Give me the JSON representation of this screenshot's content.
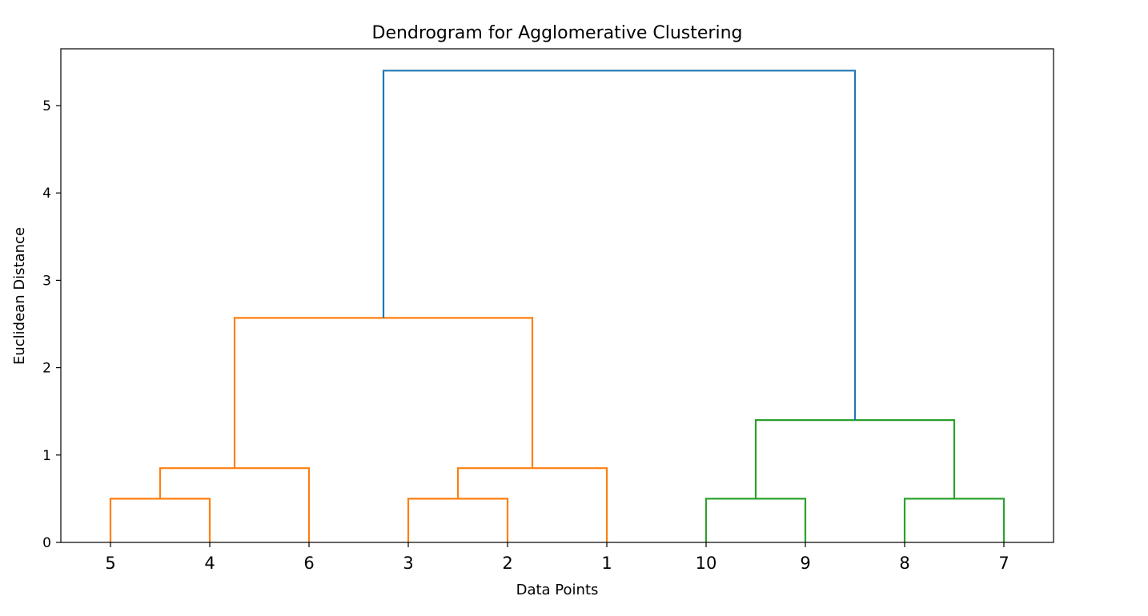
{
  "chart_data": {
    "type": "dendrogram",
    "title": "Dendrogram for Agglomerative Clustering",
    "xlabel": "Data Points",
    "ylabel": "Euclidean Distance",
    "ylim": [
      0,
      5.65
    ],
    "yticks": [
      0,
      1,
      2,
      3,
      4,
      5
    ],
    "leaves": [
      "5",
      "4",
      "6",
      "3",
      "2",
      "1",
      "10",
      "9",
      "8",
      "7"
    ],
    "merges": [
      {
        "left": "5",
        "right": "4",
        "height": 0.5,
        "color": "#ff7f0e"
      },
      {
        "left": "3",
        "right": "2",
        "height": 0.5,
        "color": "#ff7f0e"
      },
      {
        "left": "10",
        "right": "9",
        "height": 0.5,
        "color": "#2ca02c"
      },
      {
        "left": "8",
        "right": "7",
        "height": 0.5,
        "color": "#2ca02c"
      },
      {
        "left": "5+4",
        "right": "6",
        "height": 0.85,
        "color": "#ff7f0e"
      },
      {
        "left": "3+2",
        "right": "1",
        "height": 0.85,
        "color": "#ff7f0e"
      },
      {
        "left": "10+9",
        "right": "8+7",
        "height": 1.4,
        "color": "#2ca02c"
      },
      {
        "left": "5+4+6",
        "right": "3+2+1",
        "height": 2.57,
        "color": "#ff7f0e"
      },
      {
        "left": "5+4+6+3+2+1",
        "right": "10+9+8+7",
        "height": 5.4,
        "color": "#1f77b4"
      }
    ]
  }
}
